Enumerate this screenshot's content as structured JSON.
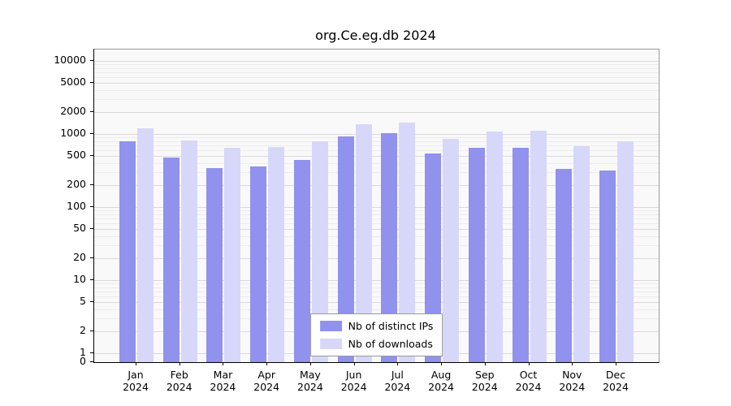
{
  "chart_data": {
    "type": "bar",
    "title": "org.Ce.eg.db 2024",
    "categories": [
      "Jan",
      "Feb",
      "Mar",
      "Apr",
      "May",
      "Jun",
      "Jul",
      "Aug",
      "Sep",
      "Oct",
      "Nov",
      "Dec"
    ],
    "year_label": "2024",
    "series": [
      {
        "name": "Nb of distinct IPs",
        "color": "#9191ee",
        "values": [
          800,
          480,
          345,
          355,
          445,
          930,
          1020,
          545,
          650,
          655,
          330,
          315
        ]
      },
      {
        "name": "Nb of downloads",
        "color": "#d7d7f9",
        "values": [
          1200,
          820,
          650,
          670,
          800,
          1350,
          1430,
          860,
          1080,
          1100,
          690,
          790
        ]
      }
    ],
    "yscale": "symlog",
    "yticks": [
      10000,
      5000,
      2000,
      1000,
      500,
      200,
      100,
      50,
      20,
      10,
      5,
      2,
      1,
      0
    ],
    "ylim": [
      0,
      14000
    ],
    "grid": "horizontal",
    "legend_position": "bottom-center"
  }
}
